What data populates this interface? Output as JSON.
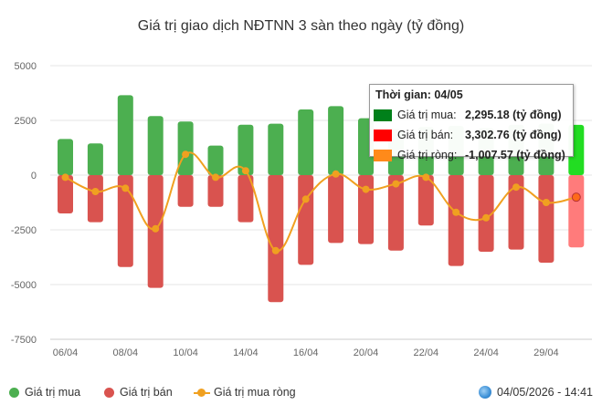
{
  "title": "Giá trị giao dịch NĐTNN 3 sàn theo ngày (tỷ đồng)",
  "colors": {
    "buy": "#4caf50",
    "sell": "#d9534f",
    "net": "#f0a020",
    "buy_highlight": "#22dd22",
    "sell_highlight": "#ff7b7b"
  },
  "chart_data": {
    "type": "bar",
    "y_ticks": [
      "5000",
      "2500",
      "0",
      "-2500",
      "-5000",
      "-7500"
    ],
    "y_tick_values": [
      5000,
      2500,
      0,
      -2500,
      -5000,
      -7500
    ],
    "ylim": [
      -7500,
      5000
    ],
    "x_tick_labels": [
      "06/04",
      "08/04",
      "10/04",
      "14/04",
      "16/04",
      "20/04",
      "22/04",
      "24/04",
      "29/04"
    ],
    "x_tick_positions": [
      0,
      2,
      4,
      6,
      8,
      10,
      12,
      14,
      16
    ],
    "series": [
      {
        "name": "Giá trị mua",
        "type": "bar",
        "values": [
          1650,
          1450,
          3650,
          2700,
          2450,
          1350,
          2300,
          2350,
          3000,
          3150,
          2600,
          2100,
          2200,
          2250,
          2150,
          2300,
          2350,
          2295.18
        ]
      },
      {
        "name": "Giá trị bán",
        "type": "bar",
        "values": [
          -1750,
          -2150,
          -4200,
          -5150,
          -1450,
          -1450,
          -2150,
          -5800,
          -4100,
          -3100,
          -3150,
          -3450,
          -2300,
          -4150,
          -3500,
          -3400,
          -4000,
          -3302.76
        ]
      },
      {
        "name": "Giá trị mua ròng",
        "type": "line",
        "values": [
          -100,
          -750,
          -600,
          -2450,
          950,
          -100,
          200,
          -3450,
          -1100,
          50,
          -650,
          -400,
          -100,
          -1700,
          -1950,
          -550,
          -1250,
          -1007.57
        ]
      }
    ],
    "grid": true,
    "legend_position": "bottom-left"
  },
  "tooltip": {
    "header": "Thời gian: 04/05",
    "rows": [
      {
        "label": "Giá trị mua:",
        "value": "2,295.18 (tỷ đồng)",
        "color": "#00801a"
      },
      {
        "label": "Giá trị bán:",
        "value": "3,302.76 (tỷ đồng)",
        "color": "#ff0000"
      },
      {
        "label": "Giá trị ròng:",
        "value": "-1,007.57 (tỷ đồng)",
        "color": "#ff8a1a"
      }
    ]
  },
  "legend": {
    "buy": "Giá trị mua",
    "sell": "Giá trị bán",
    "net": "Giá trị mua ròng"
  },
  "timestamp": "04/05/2026 - 14:41"
}
